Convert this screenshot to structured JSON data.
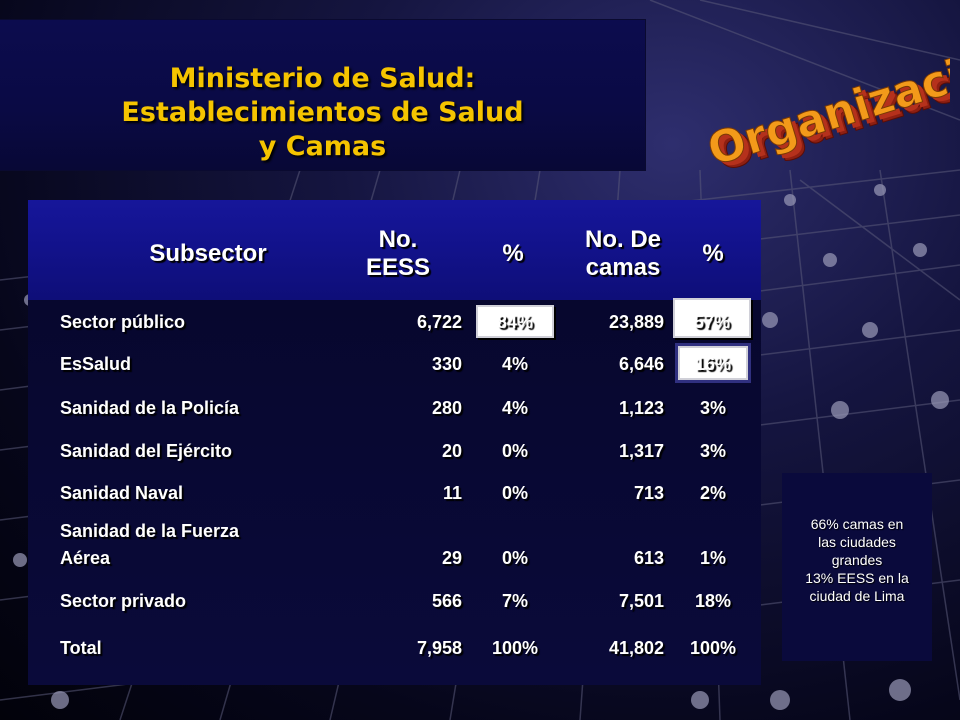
{
  "title": {
    "line1": "Ministerio de Salud:",
    "line2": "Establecimientos de Salud",
    "line3": "y Camas"
  },
  "wordart": {
    "text": "Organización"
  },
  "table": {
    "headers": {
      "subsector": "Subsector",
      "eess_l1": "No.",
      "eess_l2": "EESS",
      "pct1": "%",
      "camas_l1": "No. De",
      "camas_l2": "camas",
      "pct2": "%"
    },
    "rows": [
      {
        "name": "Sector público",
        "name2": "",
        "eess": "6,722",
        "pct_eess": "84%",
        "camas": "23,889",
        "pct_camas": "57%"
      },
      {
        "name": "EsSalud",
        "name2": "",
        "eess": "330",
        "pct_eess": "4%",
        "camas": "6,646",
        "pct_camas": "16%"
      },
      {
        "name": "Sanidad de la Policía",
        "name2": "",
        "eess": "280",
        "pct_eess": "4%",
        "camas": "1,123",
        "pct_camas": "3%"
      },
      {
        "name": "Sanidad del Ejército",
        "name2": "",
        "eess": "20",
        "pct_eess": "0%",
        "camas": "1,317",
        "pct_camas": "3%"
      },
      {
        "name": "Sanidad Naval",
        "name2": "",
        "eess": "11",
        "pct_eess": "0%",
        "camas": "713",
        "pct_camas": "2%"
      },
      {
        "name": "Sanidad de la Fuerza",
        "name2": "Aérea",
        "eess": "29",
        "pct_eess": "0%",
        "camas": "613",
        "pct_camas": "1%"
      },
      {
        "name": "Sector privado",
        "name2": "",
        "eess": "566",
        "pct_eess": "7%",
        "camas": "7,501",
        "pct_camas": "18%"
      },
      {
        "name": "Total",
        "name2": "",
        "eess": "7,958",
        "pct_eess": "100%",
        "camas": "41,802",
        "pct_camas": "100%"
      }
    ]
  },
  "note": {
    "line1": "66% camas en",
    "line2": "las ciudades",
    "line3": "grandes",
    "line4": "13% EESS en la",
    "line5": "ciudad de Lima"
  },
  "colors": {
    "title": "#f5c400",
    "header_bg": "#14148c",
    "wordart_fill": "#f39a1a",
    "wordart_shadow": "#c0392b"
  }
}
